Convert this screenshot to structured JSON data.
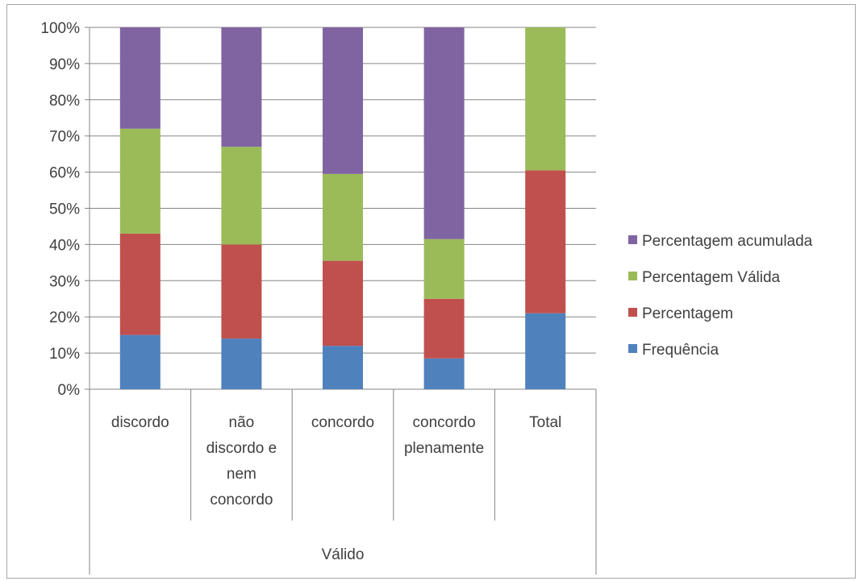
{
  "chart_data": {
    "type": "bar",
    "stacked": "percent",
    "categories": [
      [
        "discordo"
      ],
      [
        "não",
        "discordo e",
        "nem",
        "concordo"
      ],
      [
        "concordo"
      ],
      [
        "concordo",
        "plenamente"
      ],
      [
        "Total"
      ]
    ],
    "group_label": "Válido",
    "series": [
      {
        "name": "Frequência",
        "color": "#4f81bd",
        "values": [
          15,
          14,
          12,
          8.5,
          21
        ]
      },
      {
        "name": "Percentagem",
        "color": "#c0504d",
        "values": [
          28,
          26,
          23.5,
          16.5,
          39.5
        ]
      },
      {
        "name": "Percentagem Válida",
        "color": "#9bbb59",
        "values": [
          29,
          27,
          24,
          16.5,
          39.5
        ]
      },
      {
        "name": "Percentagem acumulada",
        "color": "#8064a2",
        "values": [
          28,
          33,
          40.5,
          58.5,
          0
        ]
      }
    ],
    "yticks": [
      "0%",
      "10%",
      "20%",
      "30%",
      "40%",
      "50%",
      "60%",
      "70%",
      "80%",
      "90%",
      "100%"
    ],
    "ylim": [
      0,
      100
    ],
    "grid": true,
    "legend_position": "right"
  }
}
